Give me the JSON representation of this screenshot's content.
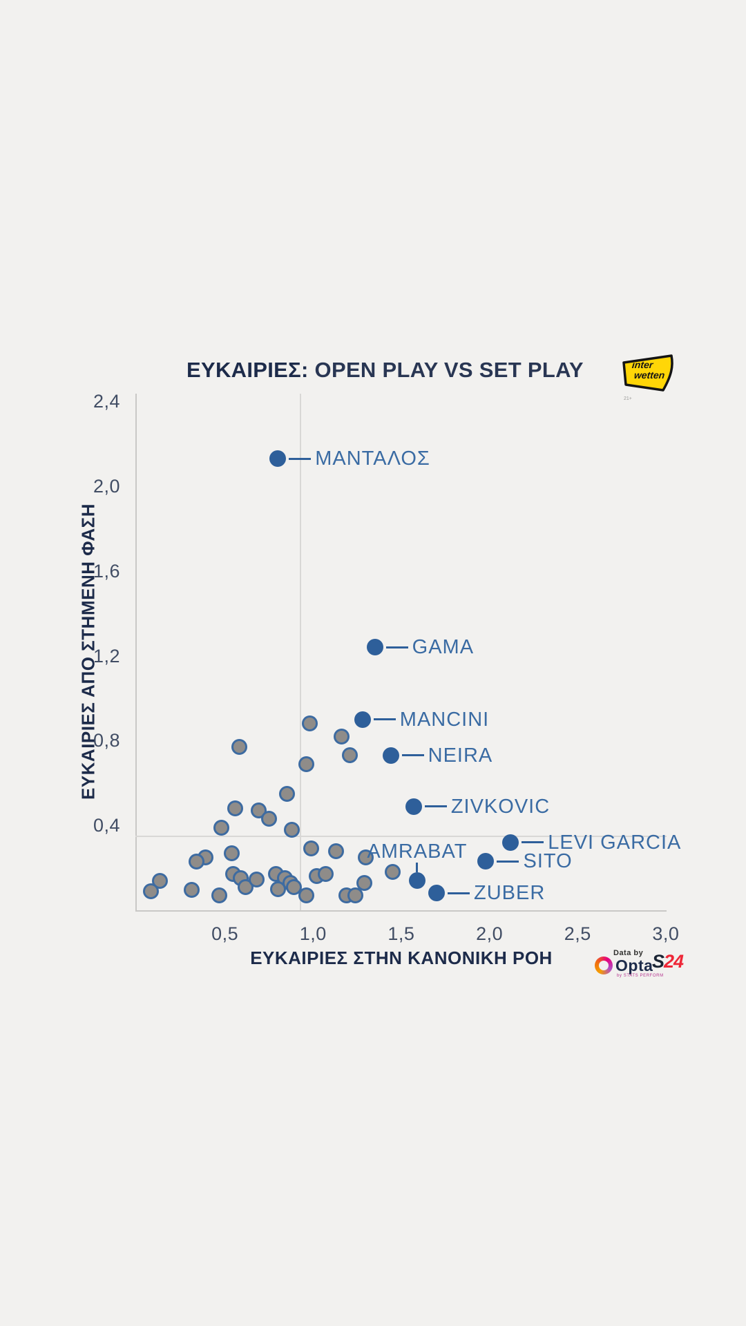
{
  "title": {
    "bold": "ΕΥΚΑΙΡΙΕΣ:",
    "rest": " OPEN PLAY VS SET PLAY"
  },
  "brand": {
    "interwetten_line1": "inter",
    "interwetten_line2": "wetten",
    "age_note": "21+"
  },
  "footer": {
    "data_by": "Data by",
    "opta": "Opta",
    "opta_sub": "by STATS PERFORM",
    "s24_first": "S",
    "s24_rest": "24"
  },
  "colors": {
    "background": "#f2f1ef",
    "navy": "#1d2b4a",
    "point_blue": "#2e5f9a",
    "label_blue": "#3a6ba3",
    "point_gray_fill": "#8f8c89",
    "point_gray_stroke": "#3d6ba1",
    "axis_line": "#c9c8c6",
    "ref_line": "#d9d8d6",
    "interwetten_yellow": "#ffd607",
    "s24_red": "#ee2737",
    "opta_magenta": "#e6007e"
  },
  "chart_data": {
    "type": "scatter",
    "title": "ΕΥΚΑΙΡΙΕΣ: OPEN PLAY VS SET PLAY",
    "xlabel": "ΕΥΚΑΙΡΙΕΣ ΣΤΗΝ ΚΑΝΟΝΙΚΗ ΡΟΗ",
    "ylabel": "ΕΥΚΑΙΡΙΕΣ ΑΠΟ ΣΤΗΜΕΝΗ ΦΑΣΗ",
    "xlim": [
      0,
      3.0
    ],
    "ylim": [
      0,
      2.45
    ],
    "x_ticks": [
      0.5,
      1.0,
      1.5,
      2.0,
      2.5,
      3.0
    ],
    "y_ticks": [
      0.4,
      0.8,
      1.2,
      1.6,
      2.0,
      2.4
    ],
    "decimal_separator": ",",
    "grid": false,
    "reference_lines": {
      "x": 0.93,
      "y": 0.35
    },
    "labeled_points": [
      {
        "name": "ΜΑΝΤΑΛΟΣ",
        "x": 0.8,
        "y": 2.13,
        "label_side": "right"
      },
      {
        "name": "GAMA",
        "x": 1.35,
        "y": 1.24,
        "label_side": "right"
      },
      {
        "name": "MANCINI",
        "x": 1.28,
        "y": 0.9,
        "label_side": "right"
      },
      {
        "name": "NEIRA",
        "x": 1.44,
        "y": 0.73,
        "label_side": "right"
      },
      {
        "name": "ZIVKOVIC",
        "x": 1.57,
        "y": 0.49,
        "label_side": "right"
      },
      {
        "name": "LEVI GARCIA",
        "x": 2.12,
        "y": 0.32,
        "label_side": "right"
      },
      {
        "name": "SITO",
        "x": 1.98,
        "y": 0.23,
        "label_side": "right"
      },
      {
        "name": "AMRABAT",
        "x": 1.59,
        "y": 0.14,
        "label_side": "above"
      },
      {
        "name": "ZUBER",
        "x": 1.7,
        "y": 0.08,
        "label_side": "right"
      }
    ],
    "unlabeled_points": [
      [
        0.98,
        0.88
      ],
      [
        1.16,
        0.82
      ],
      [
        0.58,
        0.77
      ],
      [
        1.21,
        0.73
      ],
      [
        0.96,
        0.69
      ],
      [
        0.85,
        0.55
      ],
      [
        0.56,
        0.48
      ],
      [
        0.69,
        0.47
      ],
      [
        0.75,
        0.43
      ],
      [
        0.48,
        0.39
      ],
      [
        0.88,
        0.38
      ],
      [
        0.99,
        0.29
      ],
      [
        1.13,
        0.28
      ],
      [
        1.3,
        0.25
      ],
      [
        0.39,
        0.25
      ],
      [
        0.34,
        0.23
      ],
      [
        0.54,
        0.27
      ],
      [
        0.545,
        0.17
      ],
      [
        0.59,
        0.15
      ],
      [
        0.615,
        0.11
      ],
      [
        0.68,
        0.145
      ],
      [
        0.13,
        0.14
      ],
      [
        0.08,
        0.09
      ],
      [
        0.31,
        0.095
      ],
      [
        0.47,
        0.07
      ],
      [
        0.79,
        0.17
      ],
      [
        0.84,
        0.15
      ],
      [
        0.87,
        0.13
      ],
      [
        0.89,
        0.11
      ],
      [
        0.8,
        0.1
      ],
      [
        1.02,
        0.16
      ],
      [
        1.07,
        0.17
      ],
      [
        0.96,
        0.07
      ],
      [
        1.19,
        0.07
      ],
      [
        1.24,
        0.07
      ],
      [
        1.29,
        0.13
      ],
      [
        1.45,
        0.18
      ]
    ]
  }
}
